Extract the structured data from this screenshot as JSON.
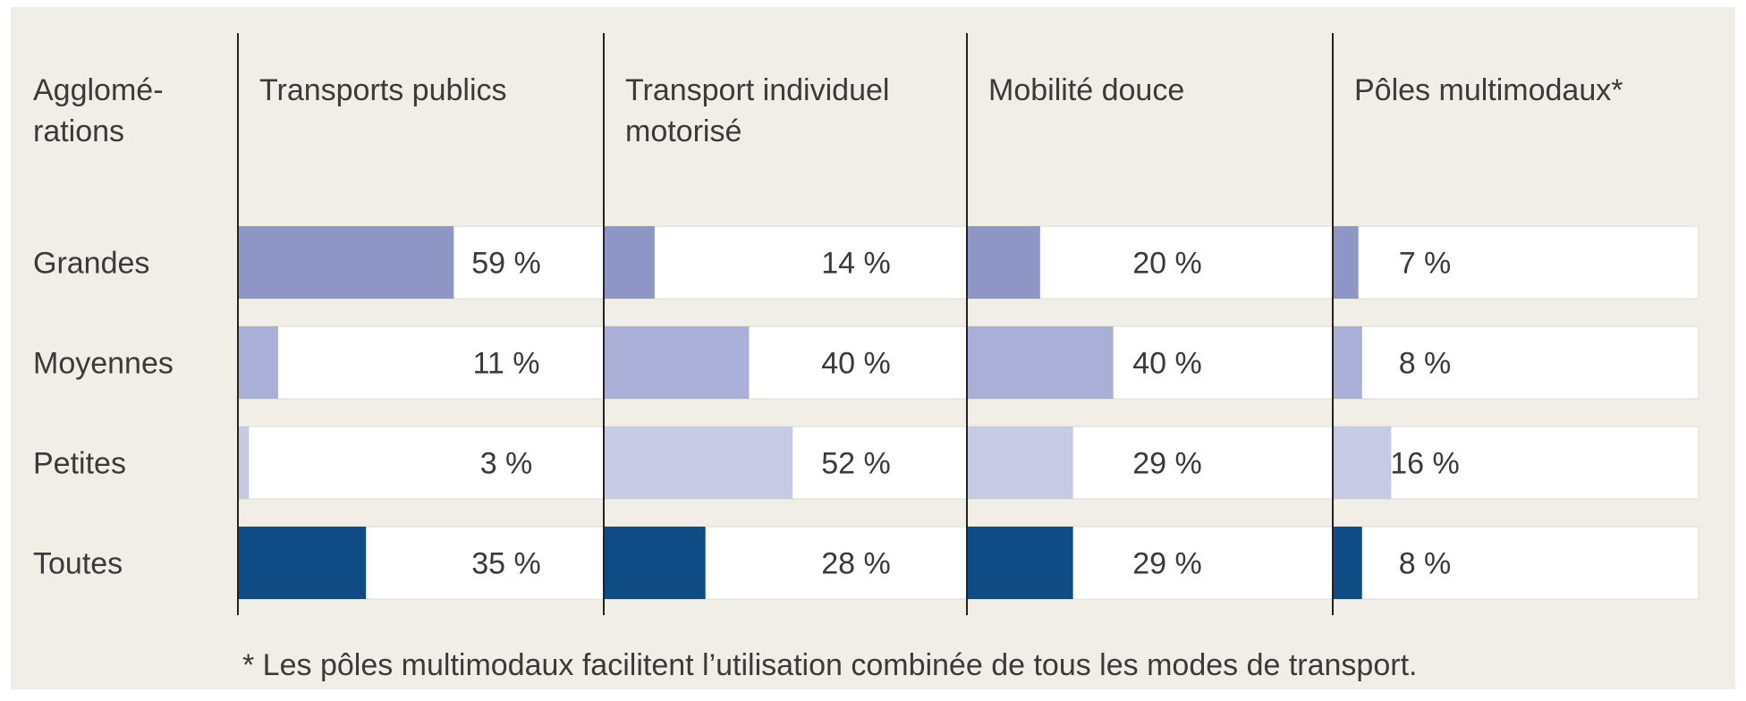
{
  "chart_data": {
    "type": "bar",
    "row_header": "Agglomé-\nrations",
    "categories": [
      "Grandes",
      "Moyennes",
      "Petites",
      "Toutes"
    ],
    "colors": [
      "#8d96c4",
      "#a9afd6",
      "#c7cae3",
      "#0f4c85"
    ],
    "xlim": [
      0,
      100
    ],
    "series": [
      {
        "name": "Transports publics",
        "values": [
          59,
          11,
          3,
          35
        ],
        "value_labels": [
          "59 %",
          "11 %",
          "3 %",
          "35 %"
        ]
      },
      {
        "name": "Transport individuel\nmotorisé",
        "values": [
          14,
          40,
          52,
          28
        ],
        "value_labels": [
          "14 %",
          "40 %",
          "52 %",
          "28 %"
        ]
      },
      {
        "name": "Mobilité douce",
        "values": [
          20,
          40,
          29,
          29
        ],
        "value_labels": [
          "20 %",
          "40 %",
          "29 %",
          "29 %"
        ]
      },
      {
        "name": "Pôles multimodaux*",
        "values": [
          7,
          8,
          16,
          8
        ],
        "value_labels": [
          "7 %",
          "8 %",
          "16 %",
          "8 %"
        ]
      }
    ],
    "footnote": "* Les pôles multimodaux facilitent l’utilisation combinée de tous les modes de transport."
  }
}
